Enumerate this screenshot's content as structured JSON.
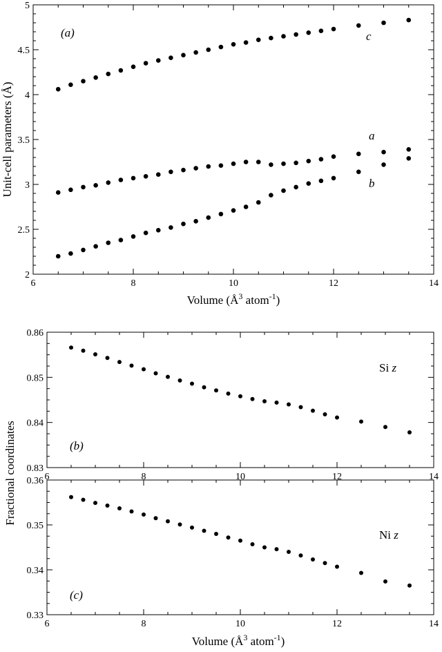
{
  "chart_data": [
    {
      "type": "scatter",
      "panel_label": "(a)",
      "xlabel_prefix": "Volume (",
      "xlabel_unit": "Å",
      "xlabel_sup": "3",
      "xlabel_mid": " atom",
      "xlabel_sup2": "-1",
      "xlabel_suffix": ")",
      "ylabel": "Unit-cell parameters (Å)",
      "xlim": [
        6,
        14
      ],
      "ylim": [
        2,
        5
      ],
      "xticks": [
        "6",
        "8",
        "10",
        "12",
        "14"
      ],
      "yticks": [
        "2",
        "2.5",
        "3",
        "3.5",
        "4",
        "4.5",
        "5"
      ],
      "grid": false,
      "series": [
        {
          "name": "c",
          "x": [
            6.5,
            6.75,
            7.0,
            7.25,
            7.5,
            7.75,
            8.0,
            8.25,
            8.5,
            8.75,
            9.0,
            9.25,
            9.5,
            9.75,
            10.0,
            10.25,
            10.5,
            10.75,
            11.0,
            11.25,
            11.5,
            11.75,
            12.0,
            12.5,
            13.0,
            13.5
          ],
          "y": [
            4.06,
            4.11,
            4.15,
            4.19,
            4.23,
            4.27,
            4.31,
            4.35,
            4.38,
            4.41,
            4.44,
            4.47,
            4.5,
            4.53,
            4.56,
            4.58,
            4.61,
            4.63,
            4.65,
            4.67,
            4.69,
            4.71,
            4.73,
            4.77,
            4.8,
            4.83
          ]
        },
        {
          "name": "a",
          "x": [
            6.5,
            6.75,
            7.0,
            7.25,
            7.5,
            7.75,
            8.0,
            8.25,
            8.5,
            8.75,
            9.0,
            9.25,
            9.5,
            9.75,
            10.0,
            10.25,
            10.5,
            10.75,
            11.0,
            11.25,
            11.5,
            11.75,
            12.0,
            12.5,
            13.0,
            13.5
          ],
          "y": [
            2.91,
            2.94,
            2.97,
            2.99,
            3.02,
            3.05,
            3.07,
            3.09,
            3.11,
            3.14,
            3.16,
            3.18,
            3.2,
            3.21,
            3.23,
            3.25,
            3.25,
            3.22,
            3.23,
            3.24,
            3.26,
            3.28,
            3.31,
            3.34,
            3.36,
            3.39
          ]
        },
        {
          "name": "b",
          "x": [
            6.5,
            6.75,
            7.0,
            7.25,
            7.5,
            7.75,
            8.0,
            8.25,
            8.5,
            8.75,
            9.0,
            9.25,
            9.5,
            9.75,
            10.0,
            10.25,
            10.5,
            10.75,
            11.0,
            11.25,
            11.5,
            11.75,
            12.0,
            12.5,
            13.0,
            13.5
          ],
          "y": [
            2.2,
            2.23,
            2.27,
            2.31,
            2.35,
            2.38,
            2.42,
            2.46,
            2.49,
            2.52,
            2.56,
            2.59,
            2.63,
            2.67,
            2.71,
            2.75,
            2.8,
            2.88,
            2.93,
            2.97,
            3.01,
            3.04,
            3.07,
            3.14,
            3.22,
            3.29
          ]
        }
      ]
    },
    {
      "type": "scatter",
      "panel_label": "(b)",
      "series_label_text": "Si ",
      "series_label_var": "z",
      "xlim": [
        6,
        14
      ],
      "ylim": [
        0.83,
        0.86
      ],
      "xticks": [
        "6",
        "8",
        "10",
        "12",
        "14"
      ],
      "yticks": [
        "0.83",
        "0.84",
        "0.85",
        "0.86"
      ],
      "grid": false,
      "series": [
        {
          "name": "Si z",
          "x": [
            6.5,
            6.75,
            7.0,
            7.25,
            7.5,
            7.75,
            8.0,
            8.25,
            8.5,
            8.75,
            9.0,
            9.25,
            9.5,
            9.75,
            10.0,
            10.25,
            10.5,
            10.75,
            11.0,
            11.25,
            11.5,
            11.75,
            12.0,
            12.5,
            13.0,
            13.5
          ],
          "y": [
            0.8566,
            0.8559,
            0.8551,
            0.8543,
            0.8534,
            0.8526,
            0.8518,
            0.8509,
            0.8501,
            0.8493,
            0.8486,
            0.8478,
            0.8471,
            0.8464,
            0.8458,
            0.8452,
            0.8447,
            0.8444,
            0.844,
            0.8434,
            0.8426,
            0.8418,
            0.8411,
            0.8402,
            0.839,
            0.8378
          ]
        }
      ]
    },
    {
      "type": "scatter",
      "panel_label": "(c)",
      "series_label_text": "Ni ",
      "series_label_var": "z",
      "xlabel_prefix": "Volume (",
      "xlabel_unit": "Å",
      "xlabel_sup": "3",
      "xlabel_mid": " atom",
      "xlabel_sup2": "-1",
      "xlabel_suffix": ")",
      "xlim": [
        6,
        14
      ],
      "ylim": [
        0.33,
        0.36
      ],
      "xticks": [
        "6",
        "8",
        "10",
        "12",
        "14"
      ],
      "yticks": [
        "0.33",
        "0.34",
        "0.35",
        "0.36"
      ],
      "grid": false,
      "series": [
        {
          "name": "Ni z",
          "x": [
            6.5,
            6.75,
            7.0,
            7.25,
            7.5,
            7.75,
            8.0,
            8.25,
            8.5,
            8.75,
            9.0,
            9.25,
            9.5,
            9.75,
            10.0,
            10.25,
            10.5,
            10.75,
            11.0,
            11.25,
            11.5,
            11.75,
            12.0,
            12.5,
            13.0,
            13.5
          ],
          "y": [
            0.3562,
            0.3556,
            0.3549,
            0.3543,
            0.3537,
            0.353,
            0.3523,
            0.3515,
            0.3508,
            0.3501,
            0.3494,
            0.3487,
            0.348,
            0.3472,
            0.3465,
            0.3457,
            0.345,
            0.3446,
            0.344,
            0.3432,
            0.3423,
            0.3415,
            0.3407,
            0.3393,
            0.3374,
            0.3365
          ]
        }
      ]
    }
  ],
  "shared_ylabel": "Fractional coordinates",
  "colors": {
    "ink": "#000000",
    "background": "#ffffff"
  }
}
